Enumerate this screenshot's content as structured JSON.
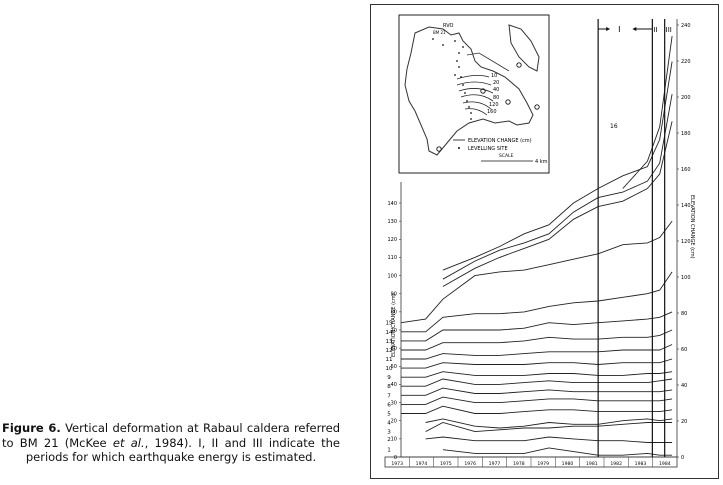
{
  "caption": {
    "label": "Figure 6.",
    "text_before": " Vertical deformation at Rabaul caldera referred to BM 21 (McKee ",
    "et_al": "et al.",
    "text_after": ", 1984). I, II and III indicate the periods for which earthquake energy is estimated."
  },
  "figure": {
    "left_axis_label": "ELEVATION CHANGE (cm)",
    "right_axis_label": "ELEVATION CHANGE (cm)",
    "period_labels": [
      "I",
      "II",
      "III"
    ],
    "top_curve_label": "16",
    "station_labels": [
      "1",
      "2",
      "3",
      "4",
      "5",
      "6",
      "7",
      "8",
      "9",
      "10",
      "11",
      "12",
      "13",
      "14",
      "15"
    ],
    "years": [
      "1973",
      "1974",
      "1975",
      "1976",
      "1977",
      "1978",
      "1979",
      "1980",
      "1981",
      "1982",
      "1983",
      "1984"
    ]
  },
  "inset_map": {
    "legend_elevation": "ELEVATION CHANGE (cm)",
    "legend_levelling": "LEVELLING SITE",
    "scale_label": "SCALE",
    "scale_value": "4 km",
    "site_labels": [
      "RVO",
      "BM 21"
    ],
    "contour_labels": [
      "10",
      "20",
      "40",
      "80",
      "120",
      "160"
    ]
  },
  "chart_data": {
    "type": "line",
    "xlabel": "",
    "ylabel": "ELEVATION CHANGE (cm)",
    "x": [
      1973.0,
      1974.0,
      1974.7,
      1976.0,
      1977.0,
      1978.0,
      1979.0,
      1980.0,
      1981.0,
      1982.0,
      1983.0,
      1983.5,
      1984.0
    ],
    "left_ylim": [
      0,
      150
    ],
    "left_ticks": [
      0,
      10,
      20,
      30,
      40,
      50,
      60,
      70,
      80,
      90,
      100,
      110,
      120,
      130,
      140
    ],
    "right_ylim": [
      0,
      240
    ],
    "right_ticks": [
      0,
      20,
      40,
      60,
      80,
      100,
      120,
      140,
      160,
      180,
      200,
      220,
      240
    ],
    "periods": [
      {
        "name": "I",
        "x": 1981.0
      },
      {
        "name": "II",
        "x": 1983.2
      },
      {
        "name": "III",
        "x": 1983.7
      }
    ],
    "series": [
      {
        "name": "1",
        "values": [
          null,
          null,
          4,
          2,
          2,
          2,
          5,
          3,
          1,
          1,
          2,
          1,
          1
        ]
      },
      {
        "name": "2",
        "values": [
          null,
          10,
          11,
          9,
          9,
          9,
          11,
          10,
          9,
          9,
          8,
          8,
          8
        ]
      },
      {
        "name": "3",
        "values": [
          null,
          14,
          19,
          14,
          15,
          16,
          16,
          17,
          17,
          18,
          19,
          19,
          19
        ]
      },
      {
        "name": "4",
        "values": [
          null,
          19,
          21,
          17,
          16,
          17,
          19,
          18,
          18,
          20,
          21,
          20,
          21
        ]
      },
      {
        "name": "5",
        "values": [
          24,
          24,
          28,
          24,
          24,
          25,
          26,
          26,
          25,
          25,
          25,
          25,
          26
        ]
      },
      {
        "name": "6",
        "values": [
          29,
          29,
          33,
          30,
          30,
          31,
          32,
          32,
          31,
          31,
          31,
          31,
          32
        ]
      },
      {
        "name": "7",
        "values": [
          34,
          34,
          38,
          35,
          35,
          36,
          37,
          36,
          36,
          36,
          36,
          36,
          37
        ]
      },
      {
        "name": "8",
        "values": [
          39,
          39,
          43,
          40,
          40,
          41,
          42,
          41,
          41,
          41,
          41,
          42,
          43
        ]
      },
      {
        "name": "9",
        "values": [
          44,
          44,
          47,
          45,
          45,
          45,
          46,
          46,
          45,
          45,
          46,
          46,
          47
        ]
      },
      {
        "name": "10",
        "values": [
          49,
          49,
          52,
          51,
          51,
          51,
          52,
          52,
          51,
          52,
          52,
          52,
          54
        ]
      },
      {
        "name": "11",
        "values": [
          54,
          54,
          57,
          56,
          56,
          57,
          58,
          58,
          58,
          59,
          59,
          59,
          62
        ]
      },
      {
        "name": "12",
        "values": [
          59,
          59,
          63,
          63,
          63,
          64,
          66,
          65,
          65,
          66,
          66,
          67,
          70
        ]
      },
      {
        "name": "13",
        "values": [
          64,
          64,
          70,
          70,
          70,
          71,
          74,
          73,
          74,
          75,
          76,
          77,
          80
        ]
      },
      {
        "name": "14",
        "values": [
          69,
          69,
          77,
          79,
          79,
          80,
          83,
          85,
          86,
          88,
          90,
          92,
          102
        ]
      },
      {
        "name": "15",
        "values": [
          74,
          76,
          87,
          100,
          102,
          103,
          106,
          109,
          112,
          117,
          118,
          121,
          130
        ]
      },
      {
        "name": "16",
        "values": [
          null,
          null,
          103,
          110,
          116,
          123,
          128,
          140,
          148,
          155,
          160,
          175,
          218
        ]
      },
      {
        "name": "",
        "values": [
          null,
          null,
          94,
          104,
          110,
          115,
          120,
          131,
          138,
          141,
          148,
          156,
          185
        ]
      },
      {
        "name": "",
        "values": [
          null,
          null,
          98,
          108,
          114,
          118,
          123,
          135,
          143,
          146,
          152,
          162,
          200
        ]
      },
      {
        "name": "",
        "values": [
          null,
          null,
          null,
          null,
          null,
          null,
          null,
          null,
          null,
          148,
          163,
          182,
          232
        ]
      }
    ]
  }
}
